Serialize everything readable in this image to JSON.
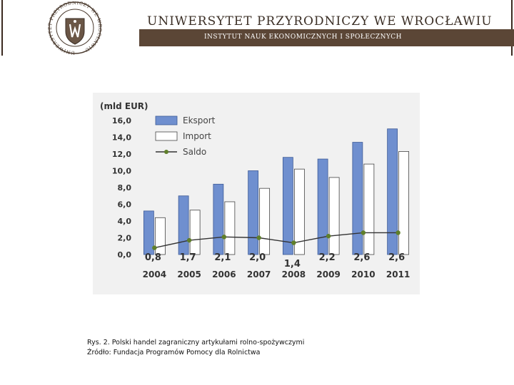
{
  "header": {
    "university": "UNIWERSYTET PRZYRODNICZY WE WROCŁAWIU",
    "institute": "INSTYTUT NAUK EKONOMICZNYCH I SPOŁECZNYCH",
    "seal_text": "UNIWERSYTET PRZYRODNICZY WE WROCŁAWIU"
  },
  "colors": {
    "header_bar": "#5b4636",
    "export_bar": "#6f8fcf",
    "import_bar": "#ffffff",
    "saldo_line": "#333333",
    "saldo_marker": "#5f7f2a",
    "chart_bg": "#f1f1f1"
  },
  "chart_data": {
    "type": "bar",
    "title": "(mld EUR)",
    "xlabel": "",
    "ylabel": "(mld EUR)",
    "categories": [
      "2004",
      "2005",
      "2006",
      "2007",
      "2008",
      "2009",
      "2010",
      "2011"
    ],
    "series": [
      {
        "name": "Eksport",
        "type": "bar",
        "values": [
          5.2,
          7.0,
          8.4,
          10.0,
          11.6,
          11.4,
          13.4,
          15.0
        ]
      },
      {
        "name": "Import",
        "type": "bar",
        "values": [
          4.4,
          5.3,
          6.3,
          7.9,
          10.2,
          9.2,
          10.8,
          12.3
        ]
      },
      {
        "name": "Saldo",
        "type": "line",
        "values": [
          0.8,
          1.7,
          2.1,
          2.0,
          1.4,
          2.2,
          2.6,
          2.6
        ]
      }
    ],
    "saldo_labels": [
      "0,8",
      "1,7",
      "2,1",
      "2,0",
      "1,4",
      "2,2",
      "2,6",
      "2,6"
    ],
    "yticks": [
      "0,0",
      "2,0",
      "4,0",
      "6,0",
      "8,0",
      "10,0",
      "12,0",
      "14,0",
      "16,0"
    ],
    "ylim": [
      0,
      16
    ],
    "legend": "top-left"
  },
  "caption": {
    "line1": "Rys. 2. Polski handel zagraniczny artykułami rolno-spożywczymi",
    "line2": "Źródło: Fundacja Programów Pomocy dla Rolnictwa"
  }
}
